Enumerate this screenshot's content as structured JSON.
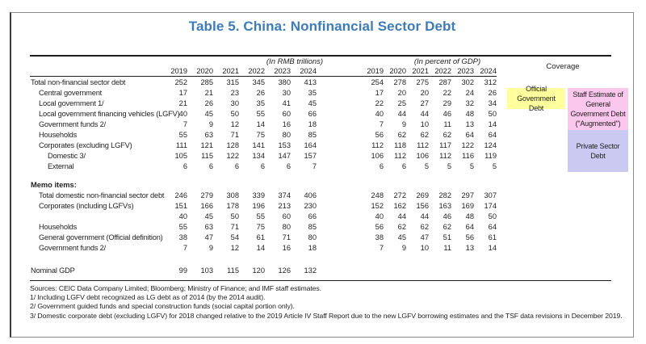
{
  "title": "Table 5. China: Nonfinancial Sector Debt",
  "header": {
    "rmb_units": "(In RMB trillions)",
    "gdp_units": "(In percent of GDP)",
    "coverage": "Coverage",
    "years": [
      "2019",
      "2020",
      "2021",
      "2022",
      "2023",
      "2024"
    ]
  },
  "main_rows": [
    {
      "label": "Total non-financial sector debt",
      "indent": 0,
      "rmb": [
        252,
        285,
        315,
        345,
        380,
        413
      ],
      "gdp": [
        254,
        278,
        275,
        287,
        302,
        312
      ]
    },
    {
      "label": "Central government",
      "indent": 1,
      "rmb": [
        17,
        21,
        23,
        26,
        30,
        35
      ],
      "gdp": [
        17,
        20,
        20,
        22,
        24,
        26
      ]
    },
    {
      "label": "Local government 1/",
      "indent": 1,
      "rmb": [
        21,
        26,
        30,
        35,
        41,
        45
      ],
      "gdp": [
        22,
        25,
        27,
        29,
        32,
        34
      ]
    },
    {
      "label": "Local government financing vehicles (LGFV)",
      "indent": 1,
      "rmb": [
        40,
        45,
        50,
        55,
        60,
        66
      ],
      "gdp": [
        40,
        44,
        44,
        46,
        48,
        50
      ]
    },
    {
      "label": "Government funds 2/",
      "indent": 1,
      "rmb": [
        7,
        9,
        12,
        14,
        16,
        18
      ],
      "gdp": [
        7,
        9,
        10,
        11,
        13,
        14
      ]
    },
    {
      "label": "Households",
      "indent": 1,
      "rmb": [
        55,
        63,
        71,
        75,
        80,
        85
      ],
      "gdp": [
        56,
        62,
        62,
        62,
        64,
        64
      ]
    },
    {
      "label": "Corporates (excluding LGFV)",
      "indent": 1,
      "rmb": [
        111,
        121,
        128,
        141,
        153,
        164
      ],
      "gdp": [
        112,
        118,
        112,
        117,
        122,
        124
      ]
    },
    {
      "label": "Domestic 3/",
      "indent": 2,
      "rmb": [
        105,
        115,
        122,
        134,
        147,
        157
      ],
      "gdp": [
        106,
        112,
        106,
        112,
        116,
        119
      ]
    },
    {
      "label": "External",
      "indent": 2,
      "rmb": [
        6,
        6,
        6,
        6,
        6,
        7
      ],
      "gdp": [
        6,
        6,
        5,
        5,
        5,
        5
      ]
    }
  ],
  "memo": {
    "heading": "Memo items:",
    "rows": [
      {
        "label": "Total domestic non-financial sector debt",
        "indent": 1,
        "rmb": [
          246,
          279,
          308,
          339,
          374,
          406
        ],
        "gdp": [
          248,
          272,
          269,
          282,
          297,
          307
        ]
      },
      {
        "label": "Corporates (including LGFVs)",
        "indent": 1,
        "rmb": [
          151,
          166,
          178,
          196,
          213,
          230
        ],
        "gdp": [
          152,
          162,
          156,
          163,
          169,
          174
        ]
      },
      {
        "label": "",
        "indent": 1,
        "rmb": [
          40,
          45,
          50,
          55,
          60,
          66
        ],
        "gdp": [
          40,
          44,
          44,
          46,
          48,
          50
        ]
      },
      {
        "label": "Households",
        "indent": 1,
        "rmb": [
          55,
          63,
          71,
          75,
          80,
          85
        ],
        "gdp": [
          56,
          62,
          62,
          62,
          64,
          64
        ]
      },
      {
        "label": "General government (Official definition)",
        "indent": 1,
        "rmb": [
          38,
          47,
          54,
          61,
          71,
          80
        ],
        "gdp": [
          38,
          45,
          47,
          51,
          56,
          61
        ]
      },
      {
        "label": "Government funds 2/",
        "indent": 1,
        "rmb": [
          7,
          9,
          12,
          14,
          16,
          18
        ],
        "gdp": [
          7,
          9,
          10,
          11,
          13,
          14
        ]
      }
    ]
  },
  "gdp_row": {
    "label": "Nominal GDP",
    "indent": 0,
    "rmb": [
      99,
      103,
      115,
      120,
      126,
      132
    ],
    "gdp": []
  },
  "coverage_boxes": {
    "official": {
      "text": "Official Government Debt",
      "color": "#ffff9e"
    },
    "augmented": {
      "text": "Staff Estimate of General Government Debt (\"Augmented\")",
      "color": "#fbc7ec"
    },
    "private": {
      "text": "Private Sector Debt",
      "color": "#c9c9f2"
    }
  },
  "footnotes": [
    "Sources: CEIC Data Company Limited; Bloomberg; Ministry of Finance; and IMF staff estimates.",
    "1/ Including LGFV debt recognized as LG debt as of 2014 (by the 2014 audit).",
    "2/ Government guided funds and special construction funds (social capital portion only).",
    "3/ Domestic corporate debt (excluding LGFV) for 2018 changed relative to the 2019 Article IV Staff Report due to the new LGFV borrowing estimates and the TSF data revisions in December 2019."
  ]
}
